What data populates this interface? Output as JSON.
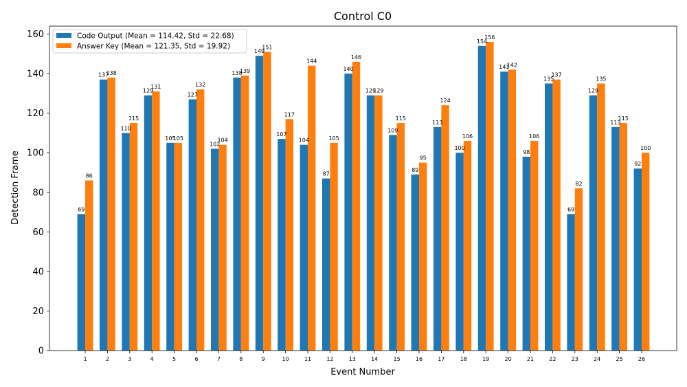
{
  "chart_data": {
    "type": "bar",
    "title": "Control C0",
    "xlabel": "Event Number",
    "ylabel": "Detection Frame",
    "ylim": [
      0,
      164
    ],
    "yticks": [
      0,
      20,
      40,
      60,
      80,
      100,
      120,
      140,
      160
    ],
    "grid": false,
    "legend_position": "top-left",
    "categories": [
      "1",
      "2",
      "3",
      "4",
      "5",
      "6",
      "7",
      "8",
      "9",
      "10",
      "11",
      "12",
      "13",
      "14",
      "15",
      "16",
      "17",
      "18",
      "19",
      "20",
      "21",
      "22",
      "23",
      "24",
      "25",
      "26"
    ],
    "series": [
      {
        "name": "Code Output (Mean = 114.42, Std = 22.68)",
        "color": "#1f77b4",
        "values": [
          69,
          137,
          110,
          129,
          105,
          127,
          102,
          138,
          149,
          107,
          104,
          87,
          140,
          129,
          109,
          89,
          113,
          100,
          154,
          141,
          98,
          135,
          69,
          129,
          113,
          92
        ]
      },
      {
        "name": "Answer Key (Mean = 121.35, Std = 19.92)",
        "color": "#ff7f0e",
        "values": [
          86,
          138,
          115,
          131,
          105,
          132,
          104,
          139,
          151,
          117,
          144,
          105,
          146,
          129,
          115,
          95,
          124,
          106,
          156,
          142,
          106,
          137,
          82,
          135,
          115,
          100
        ]
      }
    ]
  }
}
